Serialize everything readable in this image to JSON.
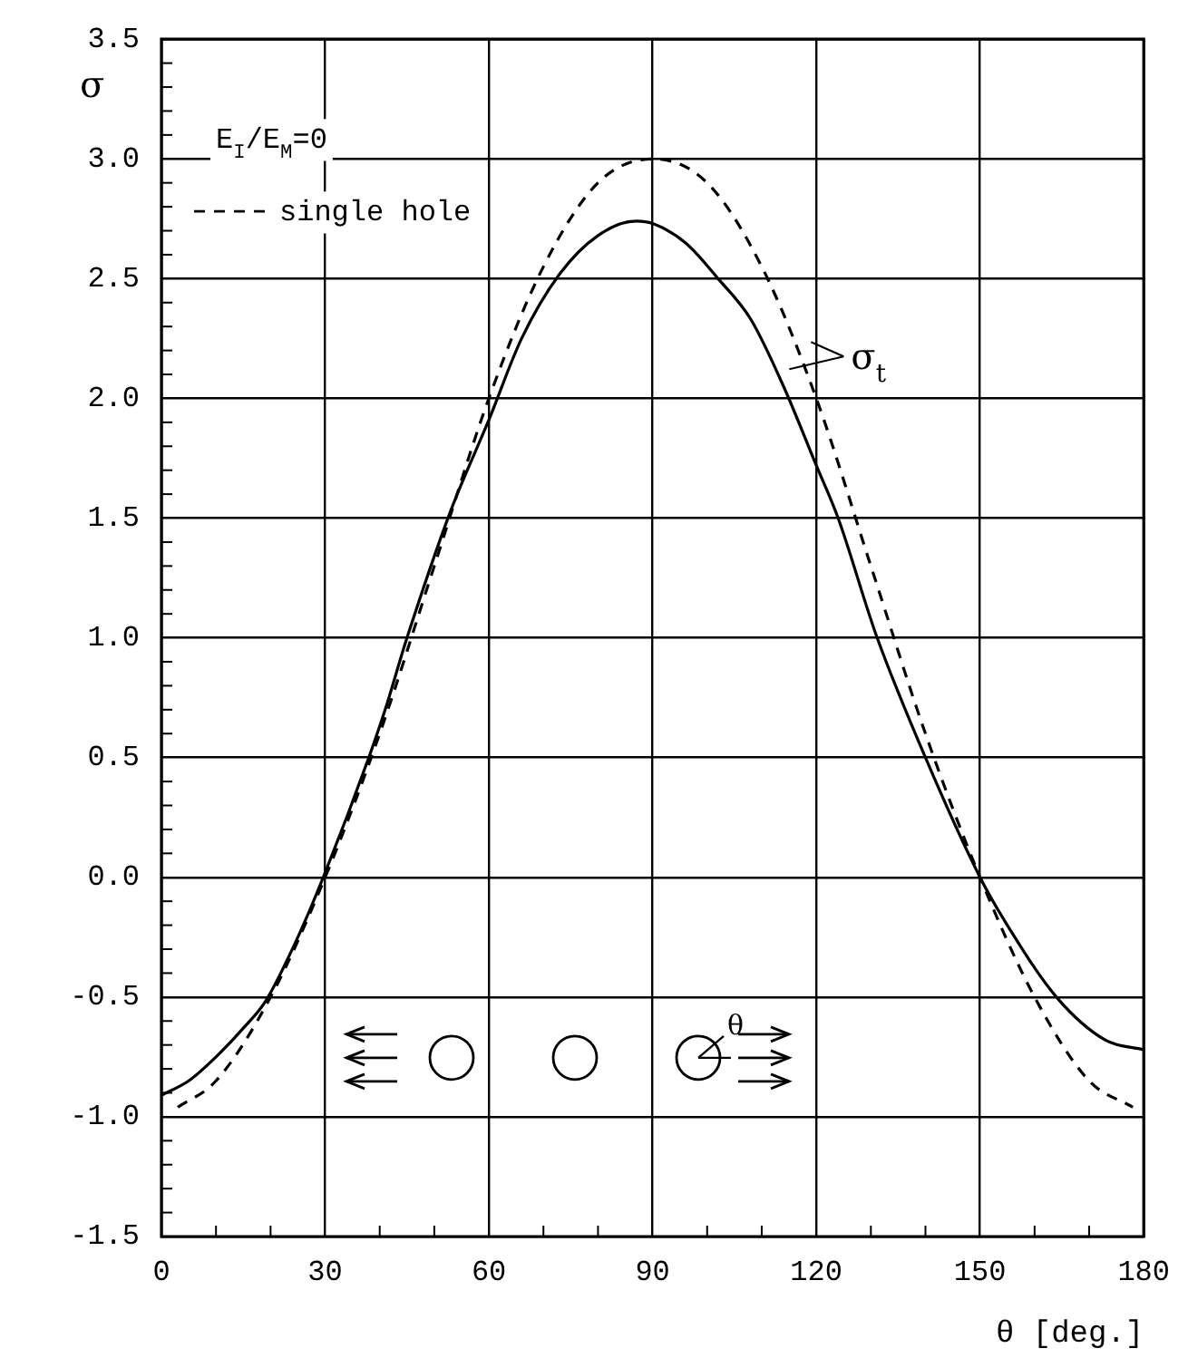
{
  "chart_data": {
    "type": "line",
    "xlabel": "θ [deg.]",
    "ylabel": "σ",
    "xlim": [
      0,
      180
    ],
    "ylim": [
      -1.5,
      3.5
    ],
    "xticks": [
      0,
      {
        "value": 10,
        "label": null
      },
      {
        "value": 20,
        "label": null
      },
      30,
      {
        "value": 40,
        "label": null
      },
      {
        "value": 50,
        "label": null
      },
      60,
      {
        "value": 70,
        "label": null
      },
      {
        "value": 80,
        "label": null
      },
      90,
      {
        "value": 100,
        "label": null
      },
      {
        "value": 110,
        "label": null
      },
      120,
      {
        "value": 130,
        "label": null
      },
      {
        "value": 140,
        "label": null
      },
      150,
      {
        "value": 160,
        "label": null
      },
      {
        "value": 170,
        "label": null
      },
      180
    ],
    "yticks": [
      {
        "value": -1.5,
        "label": "-1.5"
      },
      {
        "value": -1.4,
        "label": null
      },
      {
        "value": -1.3,
        "label": null
      },
      {
        "value": -1.2,
        "label": null
      },
      {
        "value": -1.1,
        "label": null
      },
      {
        "value": -1,
        "label": "-1.0"
      },
      {
        "value": -0.9,
        "label": null
      },
      {
        "value": -0.8,
        "label": null
      },
      {
        "value": -0.7,
        "label": null
      },
      {
        "value": -0.6,
        "label": null
      },
      {
        "value": -0.5,
        "label": "-0.5"
      },
      {
        "value": -0.4,
        "label": null
      },
      {
        "value": -0.3,
        "label": null
      },
      {
        "value": -0.2,
        "label": null
      },
      {
        "value": -0.1,
        "label": null
      },
      {
        "value": 0,
        "label": "0.0"
      },
      {
        "value": 0.1,
        "label": null
      },
      {
        "value": 0.2,
        "label": null
      },
      {
        "value": 0.3,
        "label": null
      },
      {
        "value": 0.4,
        "label": null
      },
      {
        "value": 0.5,
        "label": "0.5"
      },
      {
        "value": 0.6,
        "label": null
      },
      {
        "value": 0.7,
        "label": null
      },
      {
        "value": 0.8,
        "label": null
      },
      {
        "value": 0.9,
        "label": null
      },
      {
        "value": 1,
        "label": "1.0"
      },
      {
        "value": 1.1,
        "label": null
      },
      {
        "value": 1.2,
        "label": null
      },
      {
        "value": 1.3,
        "label": null
      },
      {
        "value": 1.4,
        "label": null
      },
      {
        "value": 1.5,
        "label": "1.5"
      },
      {
        "value": 1.6,
        "label": null
      },
      {
        "value": 1.7,
        "label": null
      },
      {
        "value": 1.8,
        "label": null
      },
      {
        "value": 1.9,
        "label": null
      },
      {
        "value": 2,
        "label": "2.0"
      },
      {
        "value": 2.1,
        "label": null
      },
      {
        "value": 2.2,
        "label": null
      },
      {
        "value": 2.3,
        "label": null
      },
      {
        "value": 2.4,
        "label": null
      },
      {
        "value": 2.5,
        "label": "2.5"
      },
      {
        "value": 2.6,
        "label": null
      },
      {
        "value": 2.7,
        "label": null
      },
      {
        "value": 2.8,
        "label": null
      },
      {
        "value": 2.9,
        "label": null
      },
      {
        "value": 3,
        "label": "3.0"
      },
      {
        "value": 3.1,
        "label": null
      },
      {
        "value": 3.2,
        "label": null
      },
      {
        "value": 3.3,
        "label": null
      },
      {
        "value": 3.4,
        "label": null
      },
      {
        "value": 3.5,
        "label": "3.5"
      }
    ],
    "grid": true,
    "legend": "top left",
    "series": [
      {
        "color": "#000000",
        "line_style": "solid",
        "x": [
          0,
          5,
          10,
          15,
          19,
          25,
          30,
          38,
          41,
          45,
          53,
          60,
          66,
          73,
          80,
          87,
          90,
          96,
          102,
          108,
          114,
          120,
          124,
          131,
          140,
          150,
          155,
          164,
          173,
          180
        ],
        "values": [
          -0.91,
          -0.85,
          -0.75,
          -0.63,
          -0.52,
          -0.25,
          0.02,
          0.5,
          0.7,
          1.0,
          1.53,
          1.91,
          2.25,
          2.52,
          2.68,
          2.74,
          2.73,
          2.65,
          2.5,
          2.33,
          2.05,
          1.72,
          1.5,
          1.01,
          0.5,
          0.0,
          -0.2,
          -0.5,
          -0.68,
          -0.72
        ]
      },
      {
        "name": "single hole",
        "color": "#000000",
        "line_style": "dashed",
        "x": [
          3,
          10,
          20,
          30,
          40,
          50,
          60,
          70,
          80,
          90,
          100,
          110,
          120,
          130,
          140,
          150,
          160,
          170,
          178
        ],
        "values": [
          -0.96,
          -0.85,
          -0.5,
          0.0,
          0.6,
          1.3,
          2.0,
          2.55,
          2.9,
          3.0,
          2.9,
          2.55,
          2.0,
          1.3,
          0.6,
          0.0,
          -0.5,
          -0.85,
          -0.96
        ]
      }
    ],
    "annotations": [
      "E$_{I}$/E$_{M}$=0",
      "σ$_{t}$",
      "θ"
    ]
  }
}
